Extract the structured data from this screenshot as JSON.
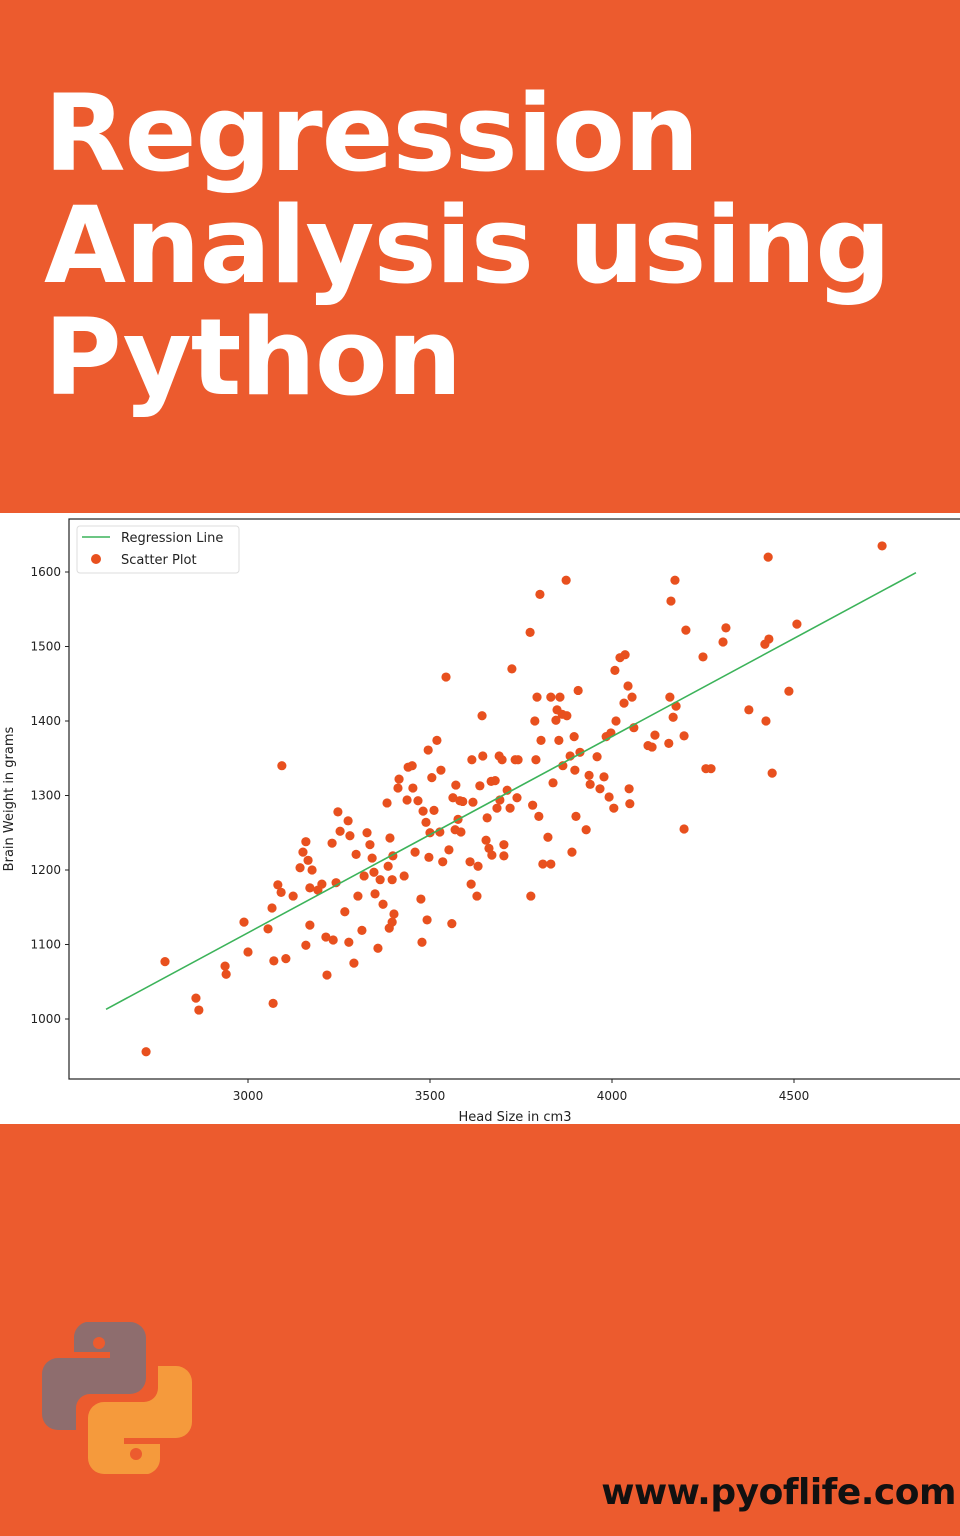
{
  "title_lines": [
    "Regression",
    "Analysis using",
    "Python"
  ],
  "footer": {
    "url": "www.pyoflife.com"
  },
  "logo": {
    "name": "python-logo",
    "colors": {
      "top": "#8e6d6e",
      "bottom": "#f59a3c"
    }
  },
  "colors": {
    "background": "#ec5b2e",
    "points": "#e8501e",
    "line": "#3cb35a"
  },
  "chart_data": {
    "type": "scatter",
    "title": "",
    "xlabel": "Head Size in cm3",
    "ylabel": "Brain Weight in grams",
    "xlim": [
      2508,
      4956
    ],
    "ylim": [
      920,
      1671
    ],
    "xticks": [
      3000,
      3500,
      4000,
      4500
    ],
    "yticks": [
      1000,
      1100,
      1200,
      1300,
      1400,
      1500,
      1600
    ],
    "grid": false,
    "legend_placement": "top-left",
    "legend": [
      "Regression Line",
      "Scatter Plot"
    ],
    "regression_line": {
      "name": "Regression Line",
      "intercept": 325.57,
      "slope": 0.2634,
      "x_range": [
        2610,
        4835
      ]
    },
    "scatter": {
      "name": "Scatter Plot",
      "points": [
        [
          2720,
          956
        ],
        [
          2772,
          1077
        ],
        [
          2857,
          1028
        ],
        [
          2865,
          1012
        ],
        [
          2937,
          1071
        ],
        [
          2940,
          1060
        ],
        [
          2989,
          1130
        ],
        [
          3000,
          1090
        ],
        [
          3055,
          1121
        ],
        [
          3066,
          1149
        ],
        [
          3069,
          1021
        ],
        [
          3071,
          1078
        ],
        [
          3082,
          1180
        ],
        [
          3091,
          1170
        ],
        [
          3093,
          1340
        ],
        [
          3104,
          1081
        ],
        [
          3124,
          1165
        ],
        [
          3143,
          1203
        ],
        [
          3151,
          1224
        ],
        [
          3159,
          1238
        ],
        [
          3159,
          1099
        ],
        [
          3165,
          1213
        ],
        [
          3170,
          1126
        ],
        [
          3176,
          1200
        ],
        [
          3170,
          1176
        ],
        [
          3192,
          1173
        ],
        [
          3203,
          1181
        ],
        [
          3217,
          1059
        ],
        [
          3214,
          1110
        ],
        [
          3234,
          1106
        ],
        [
          3231,
          1236
        ],
        [
          3247,
          1278
        ],
        [
          3253,
          1252
        ],
        [
          3242,
          1183
        ],
        [
          3266,
          1144
        ],
        [
          3275,
          1266
        ],
        [
          3280,
          1246
        ],
        [
          3277,
          1103
        ],
        [
          3291,
          1075
        ],
        [
          3297,
          1221
        ],
        [
          3302,
          1165
        ],
        [
          3313,
          1119
        ],
        [
          3319,
          1192
        ],
        [
          3327,
          1250
        ],
        [
          3335,
          1234
        ],
        [
          3341,
          1216
        ],
        [
          3346,
          1197
        ],
        [
          3349,
          1168
        ],
        [
          3357,
          1095
        ],
        [
          3363,
          1187
        ],
        [
          3371,
          1154
        ],
        [
          3382,
          1290
        ],
        [
          3385,
          1205
        ],
        [
          3388,
          1122
        ],
        [
          3390,
          1243
        ],
        [
          3396,
          1187
        ],
        [
          3396,
          1130
        ],
        [
          3401,
          1141
        ],
        [
          3398,
          1219
        ],
        [
          3412,
          1310
        ],
        [
          3415,
          1322
        ],
        [
          3429,
          1192
        ],
        [
          3437,
          1294
        ],
        [
          3440,
          1338
        ],
        [
          3451,
          1340
        ],
        [
          3453,
          1310
        ],
        [
          3459,
          1224
        ],
        [
          3467,
          1293
        ],
        [
          3475,
          1161
        ],
        [
          3478,
          1103
        ],
        [
          3481,
          1279
        ],
        [
          3489,
          1264
        ],
        [
          3492,
          1133
        ],
        [
          3495,
          1361
        ],
        [
          3497,
          1217
        ],
        [
          3500,
          1250
        ],
        [
          3505,
          1324
        ],
        [
          3511,
          1280
        ],
        [
          3519,
          1374
        ],
        [
          3527,
          1251
        ],
        [
          3530,
          1334
        ],
        [
          3535,
          1211
        ],
        [
          3544,
          1459
        ],
        [
          3552,
          1227
        ],
        [
          3560,
          1128
        ],
        [
          3563,
          1297
        ],
        [
          3569,
          1254
        ],
        [
          3571,
          1314
        ],
        [
          3577,
          1268
        ],
        [
          3582,
          1293
        ],
        [
          3585,
          1251
        ],
        [
          3590,
          1292
        ],
        [
          3610,
          1211
        ],
        [
          3613,
          1181
        ],
        [
          3615,
          1348
        ],
        [
          3618,
          1291
        ],
        [
          3629,
          1165
        ],
        [
          3632,
          1205
        ],
        [
          3637,
          1313
        ],
        [
          3643,
          1407
        ],
        [
          3645,
          1353
        ],
        [
          3654,
          1240
        ],
        [
          3657,
          1270
        ],
        [
          3662,
          1229
        ],
        [
          3668,
          1319
        ],
        [
          3670,
          1220
        ],
        [
          3679,
          1320
        ],
        [
          3684,
          1283
        ],
        [
          3690,
          1353
        ],
        [
          3692,
          1294
        ],
        [
          3698,
          1348
        ],
        [
          3703,
          1234
        ],
        [
          3703,
          1219
        ],
        [
          3712,
          1307
        ],
        [
          3720,
          1283
        ],
        [
          3725,
          1470
        ],
        [
          3734,
          1348
        ],
        [
          3739,
          1297
        ],
        [
          3742,
          1348
        ],
        [
          3775,
          1519
        ],
        [
          3777,
          1165
        ],
        [
          3782,
          1287
        ],
        [
          3788,
          1400
        ],
        [
          3791,
          1348
        ],
        [
          3794,
          1432
        ],
        [
          3799,
          1272
        ],
        [
          3802,
          1570
        ],
        [
          3805,
          1374
        ],
        [
          3810,
          1208
        ],
        [
          3824,
          1244
        ],
        [
          3832,
          1208
        ],
        [
          3832,
          1432
        ],
        [
          3838,
          1317
        ],
        [
          3846,
          1401
        ],
        [
          3849,
          1415
        ],
        [
          3854,
          1374
        ],
        [
          3857,
          1432
        ],
        [
          3863,
          1409
        ],
        [
          3865,
          1340
        ],
        [
          3874,
          1589
        ],
        [
          3876,
          1407
        ],
        [
          3885,
          1353
        ],
        [
          3890,
          1224
        ],
        [
          3896,
          1379
        ],
        [
          3898,
          1334
        ],
        [
          3901,
          1272
        ],
        [
          3907,
          1441
        ],
        [
          3912,
          1358
        ],
        [
          3929,
          1254
        ],
        [
          3937,
          1327
        ],
        [
          3940,
          1315
        ],
        [
          3959,
          1352
        ],
        [
          3967,
          1309
        ],
        [
          3978,
          1325
        ],
        [
          3984,
          1379
        ],
        [
          3992,
          1298
        ],
        [
          3997,
          1384
        ],
        [
          4005,
          1283
        ],
        [
          4011,
          1400
        ],
        [
          4008,
          1468
        ],
        [
          4022,
          1485
        ],
        [
          4036,
          1489
        ],
        [
          4033,
          1424
        ],
        [
          4044,
          1447
        ],
        [
          4047,
          1309
        ],
        [
          4049,
          1289
        ],
        [
          4055,
          1432
        ],
        [
          4060,
          1391
        ],
        [
          4099,
          1367
        ],
        [
          4110,
          1365
        ],
        [
          4118,
          1381
        ],
        [
          4156,
          1370
        ],
        [
          4159,
          1432
        ],
        [
          4162,
          1561
        ],
        [
          4168,
          1405
        ],
        [
          4173,
          1589
        ],
        [
          4176,
          1420
        ],
        [
          4198,
          1380
        ],
        [
          4198,
          1255
        ],
        [
          4203,
          1522
        ],
        [
          4250,
          1486
        ],
        [
          4258,
          1336
        ],
        [
          4272,
          1336
        ],
        [
          4305,
          1506
        ],
        [
          4313,
          1525
        ],
        [
          4376,
          1415
        ],
        [
          4420,
          1503
        ],
        [
          4423,
          1400
        ],
        [
          4429,
          1620
        ],
        [
          4431,
          1510
        ],
        [
          4440,
          1330
        ],
        [
          4486,
          1440
        ],
        [
          4508,
          1530
        ],
        [
          4742,
          1635
        ]
      ]
    }
  }
}
